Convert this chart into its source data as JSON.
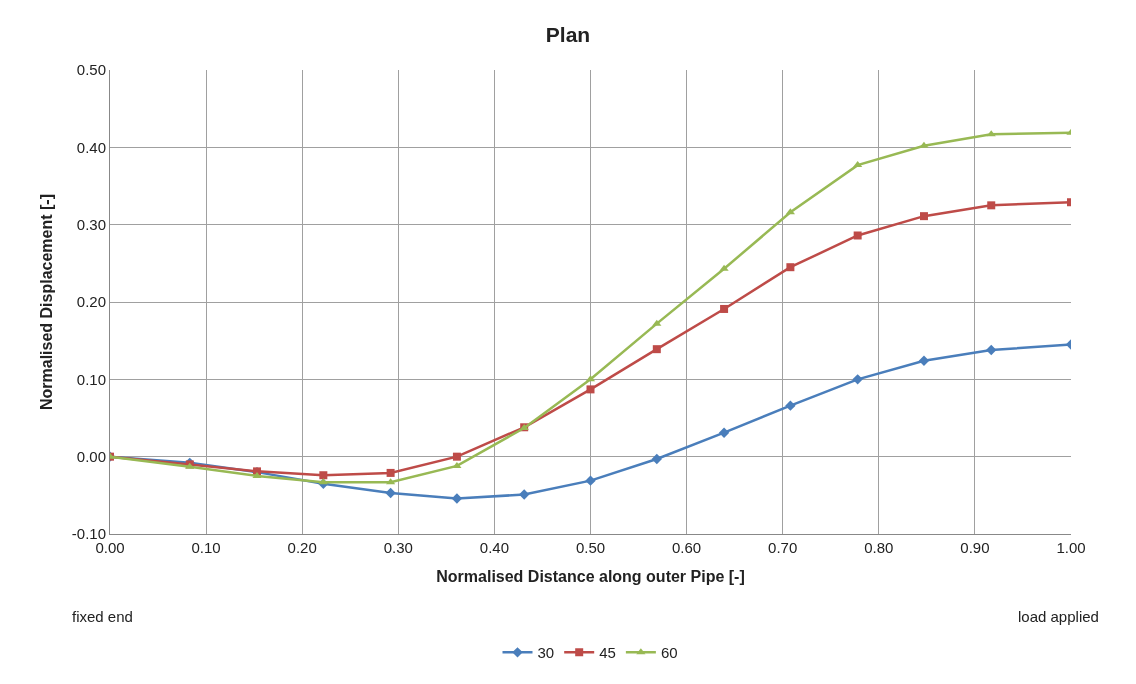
{
  "chart_data": {
    "type": "line",
    "title": "Plan",
    "xlabel": "Normalised Distance along outer Pipe [-]",
    "ylabel": "Normalised Displacement [-]",
    "x": [
      0,
      0.083,
      0.153,
      0.222,
      0.292,
      0.361,
      0.431,
      0.5,
      0.569,
      0.639,
      0.708,
      0.778,
      0.847,
      0.917,
      1.0
    ],
    "series": [
      {
        "name": "30",
        "color": "#4a7ebb",
        "marker": "diamond",
        "values": [
          0,
          -0.008,
          -0.02,
          -0.035,
          -0.047,
          -0.054,
          -0.049,
          -0.031,
          -0.003,
          0.031,
          0.066,
          0.1,
          0.124,
          0.138,
          0.145
        ]
      },
      {
        "name": "45",
        "color": "#be4b48",
        "marker": "square",
        "values": [
          0,
          -0.01,
          -0.019,
          -0.024,
          -0.021,
          0,
          0.038,
          0.087,
          0.139,
          0.191,
          0.245,
          0.286,
          0.311,
          0.325,
          0.329
        ]
      },
      {
        "name": "60",
        "color": "#98b954",
        "marker": "triangle",
        "values": [
          0,
          -0.013,
          -0.025,
          -0.033,
          -0.033,
          -0.012,
          0.037,
          0.1,
          0.172,
          0.243,
          0.316,
          0.377,
          0.402,
          0.417,
          0.419
        ]
      }
    ],
    "xlim": [
      0,
      1
    ],
    "xticks": [
      {
        "value": 0,
        "label": "0.00"
      },
      {
        "value": 0.1,
        "label": "0.10"
      },
      {
        "value": 0.2,
        "label": "0.20"
      },
      {
        "value": 0.3,
        "label": "0.30"
      },
      {
        "value": 0.4,
        "label": "0.40"
      },
      {
        "value": 0.5,
        "label": "0.50"
      },
      {
        "value": 0.6,
        "label": "0.60"
      },
      {
        "value": 0.7,
        "label": "0.70"
      },
      {
        "value": 0.8,
        "label": "0.80"
      },
      {
        "value": 0.9,
        "label": "0.90"
      },
      {
        "value": 1.0,
        "label": "1.00"
      }
    ],
    "ylim": [
      -0.1,
      0.5
    ],
    "yticks": [
      {
        "value": -0.1,
        "label": "-0.10"
      },
      {
        "value": 0,
        "label": "0.00"
      },
      {
        "value": 0.1,
        "label": "0.10"
      },
      {
        "value": 0.2,
        "label": "0.20"
      },
      {
        "value": 0.3,
        "label": "0.30"
      },
      {
        "value": 0.4,
        "label": "0.40"
      },
      {
        "value": 0.5,
        "label": "0.50"
      }
    ],
    "grid": true,
    "legend": "bottom",
    "line_style": "solid",
    "annotations": [
      "fixed end",
      "load applied"
    ]
  }
}
